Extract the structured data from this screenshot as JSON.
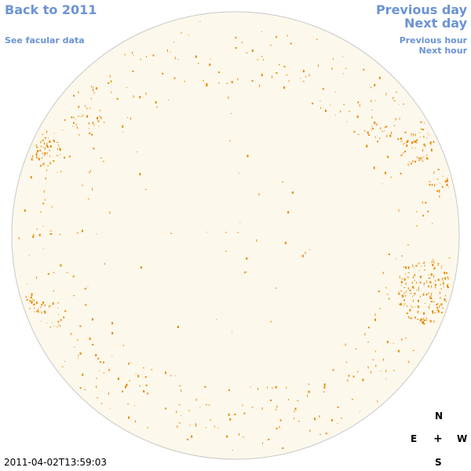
{
  "nav": {
    "back_label": "Back to 2011",
    "facular_label": "See facular data",
    "prev_day_label": "Previous day",
    "next_day_label": "Next day",
    "prev_hour_label": "Previous hour",
    "next_hour_label": "Next hour"
  },
  "timestamp": "2011-04-02T13:59:03",
  "compass": {
    "north": "N",
    "south": "S",
    "east": "E",
    "west": "W",
    "center": "+"
  },
  "colors": {
    "link": "#6b93d6",
    "disk_fill": "#fdf8ec",
    "disk_stroke": "#c8c8c8",
    "facula": "#e88a00"
  },
  "disk": {
    "type": "solar-disk",
    "features": "faculae"
  }
}
